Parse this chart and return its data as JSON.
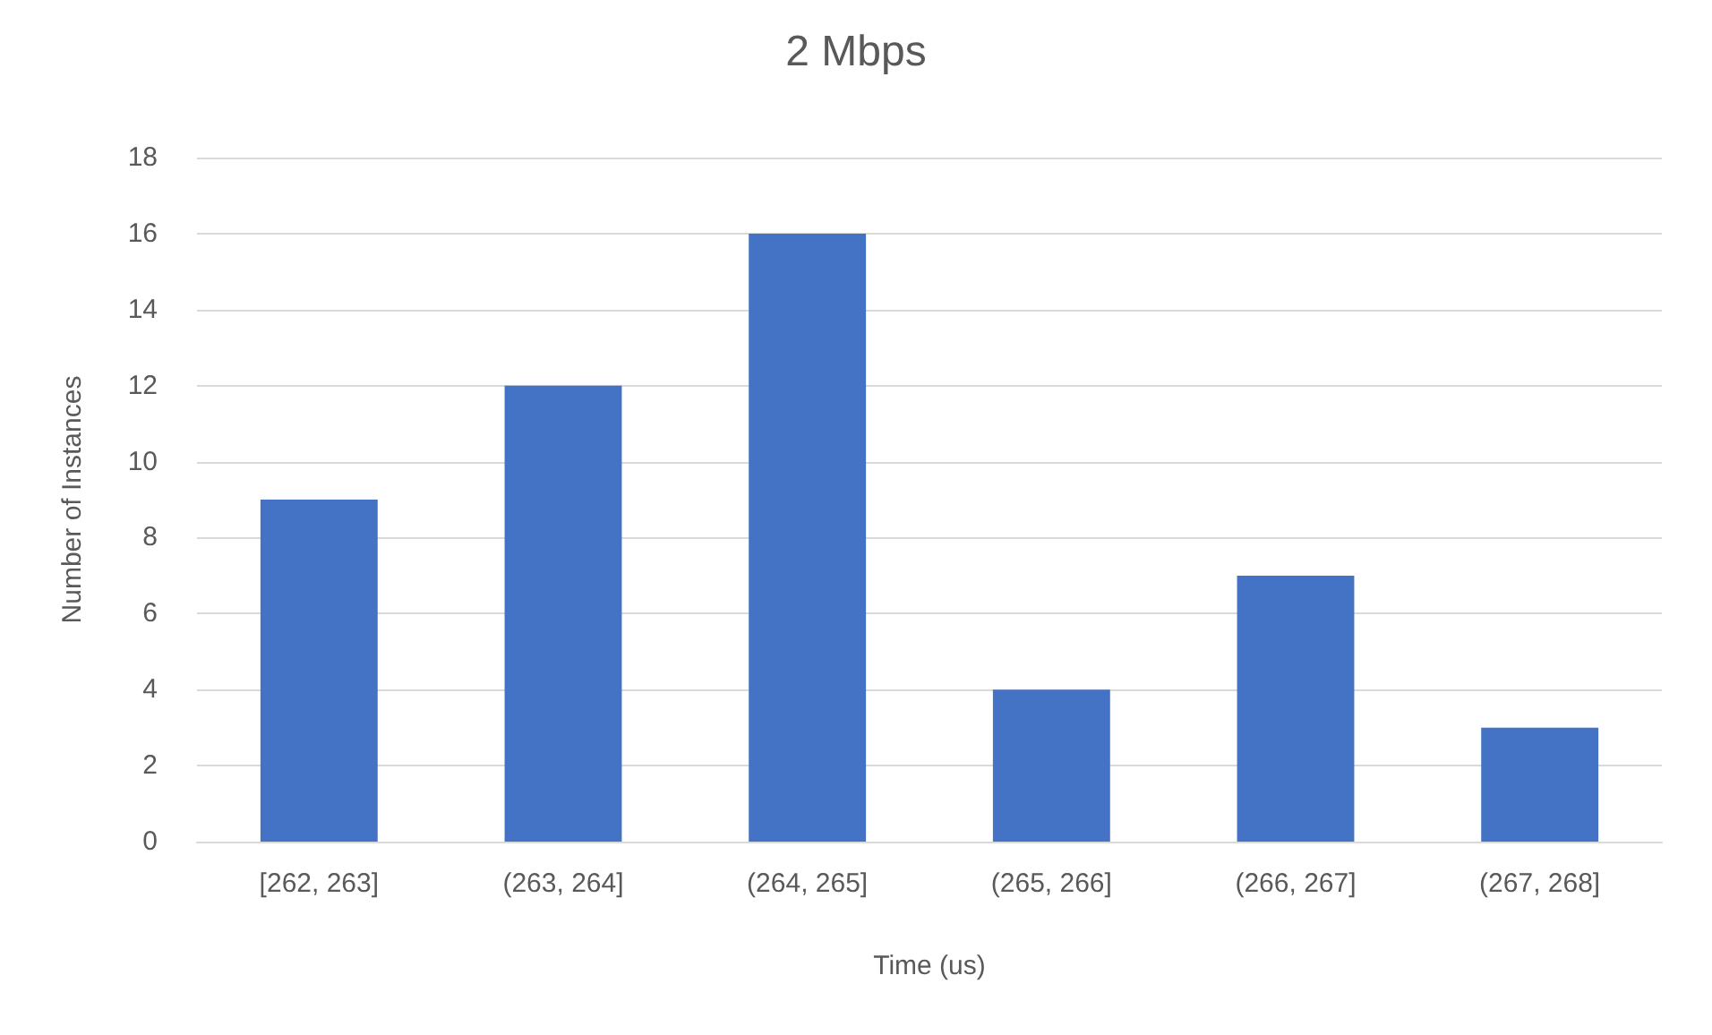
{
  "chart_data": {
    "type": "bar",
    "title": "2 Mbps",
    "xlabel": "Time (us)",
    "ylabel": "Number of Instances",
    "categories": [
      "[262, 263]",
      "(263, 264]",
      "(264, 265]",
      "(265, 266]",
      "(266, 267]",
      "(267, 268]"
    ],
    "values": [
      9,
      12,
      16,
      4,
      7,
      3
    ],
    "color": "#4472c4",
    "ylim": [
      0,
      18
    ],
    "yticks": [
      0,
      2,
      4,
      6,
      8,
      10,
      12,
      14,
      16,
      18
    ],
    "grid": "y"
  }
}
